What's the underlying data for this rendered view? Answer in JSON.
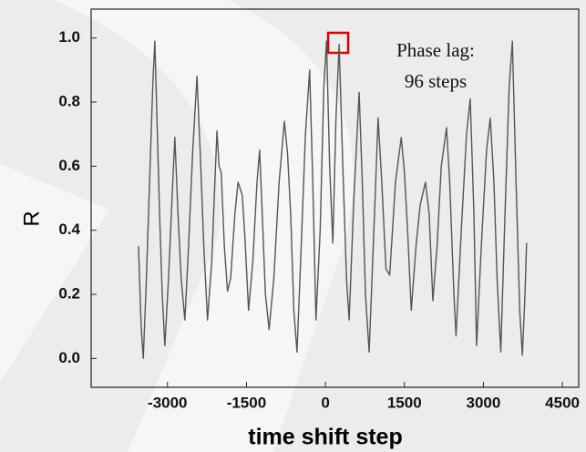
{
  "chart_data": {
    "type": "line",
    "annotation": [
      "Phase lag:",
      "96 steps"
    ],
    "x_label": "time shift step",
    "y_label": "R",
    "color": "#555555",
    "xlim": [
      -4450,
      4810
    ],
    "ylim": [
      -0.09,
      1.09
    ],
    "xticks": [
      -3000,
      -1500,
      0,
      1500,
      3000,
      4500
    ],
    "yticks": [
      {
        "value": 0,
        "label": "0.0"
      },
      {
        "value": 0.2,
        "label": "0.2"
      },
      {
        "value": 0.4,
        "label": "0.4"
      },
      {
        "value": 0.6,
        "label": "0.6"
      },
      {
        "value": 0.8,
        "label": "0.8"
      },
      {
        "value": 1,
        "label": "1.0"
      }
    ],
    "x": [
      -3550,
      -3500,
      -3460,
      -3400,
      -3340,
      -3280,
      -3240,
      -3200,
      -3150,
      -3100,
      -3050,
      -2980,
      -2900,
      -2860,
      -2800,
      -2740,
      -2670,
      -2600,
      -2520,
      -2440,
      -2380,
      -2310,
      -2240,
      -2160,
      -2100,
      -2060,
      -2020,
      -1980,
      -1920,
      -1860,
      -1800,
      -1720,
      -1660,
      -1580,
      -1530,
      -1460,
      -1380,
      -1300,
      -1250,
      -1200,
      -1140,
      -1070,
      -980,
      -880,
      -780,
      -720,
      -660,
      -600,
      -540,
      -460,
      -380,
      -300,
      -240,
      -180,
      -100,
      -30,
      20,
      80,
      140,
      200,
      260,
      330,
      400,
      450,
      540,
      640,
      700,
      760,
      830,
      920,
      1000,
      1070,
      1150,
      1220,
      1330,
      1440,
      1500,
      1560,
      1630,
      1720,
      1800,
      1900,
      1970,
      2040,
      2120,
      2200,
      2300,
      2360,
      2440,
      2480,
      2580,
      2680,
      2750,
      2820,
      2870,
      2960,
      3060,
      3130,
      3200,
      3260,
      3330,
      3410,
      3490,
      3550,
      3620,
      3690,
      3740,
      3790,
      3820
    ],
    "values": [
      0.35,
      0.1,
      0.0,
      0.25,
      0.55,
      0.85,
      0.99,
      0.75,
      0.45,
      0.2,
      0.04,
      0.25,
      0.55,
      0.69,
      0.45,
      0.25,
      0.12,
      0.35,
      0.65,
      0.88,
      0.65,
      0.35,
      0.12,
      0.3,
      0.55,
      0.71,
      0.6,
      0.58,
      0.35,
      0.21,
      0.25,
      0.45,
      0.55,
      0.51,
      0.38,
      0.15,
      0.3,
      0.55,
      0.65,
      0.45,
      0.2,
      0.09,
      0.25,
      0.55,
      0.74,
      0.64,
      0.45,
      0.15,
      0.02,
      0.35,
      0.7,
      0.9,
      0.55,
      0.12,
      0.4,
      0.85,
      0.99,
      0.6,
      0.36,
      0.75,
      0.98,
      0.6,
      0.25,
      0.12,
      0.5,
      0.83,
      0.55,
      0.2,
      0.02,
      0.4,
      0.75,
      0.55,
      0.28,
      0.26,
      0.55,
      0.69,
      0.58,
      0.4,
      0.15,
      0.35,
      0.48,
      0.55,
      0.45,
      0.18,
      0.35,
      0.6,
      0.72,
      0.55,
      0.2,
      0.07,
      0.4,
      0.7,
      0.81,
      0.45,
      0.04,
      0.35,
      0.65,
      0.75,
      0.55,
      0.25,
      0.02,
      0.45,
      0.85,
      0.99,
      0.55,
      0.15,
      0.01,
      0.2,
      0.36
    ]
  }
}
